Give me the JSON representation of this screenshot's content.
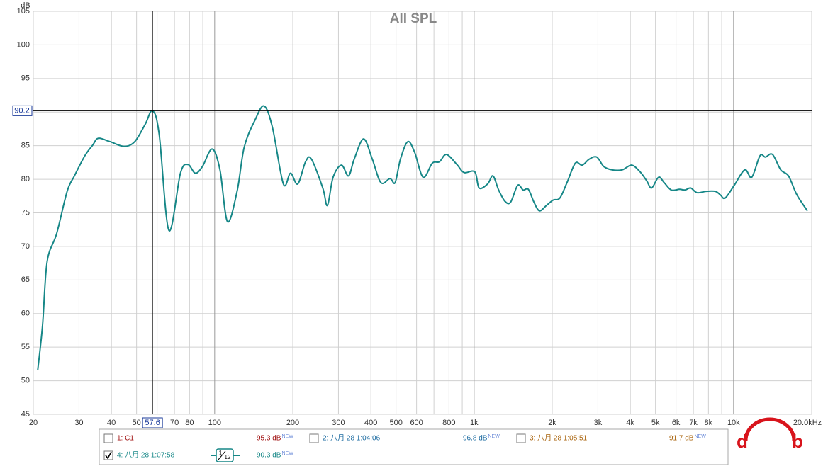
{
  "chart_data": {
    "type": "line",
    "title": "All SPL",
    "y_label": "dB",
    "x_scale": "log",
    "xlim": [
      20,
      20000
    ],
    "ylim": [
      45,
      105
    ],
    "yticks": [
      45,
      50,
      55,
      60,
      65,
      70,
      75,
      80,
      85,
      90,
      95,
      100,
      105
    ],
    "xticks": [
      20,
      30,
      40,
      50,
      70,
      80,
      100,
      200,
      300,
      400,
      500,
      600,
      800,
      {
        "value": 1000,
        "label": "1k"
      },
      {
        "value": 2000,
        "label": "2k"
      },
      {
        "value": 3000,
        "label": "3k"
      },
      {
        "value": 4000,
        "label": "4k"
      },
      {
        "value": 5000,
        "label": "5k"
      },
      {
        "value": 6000,
        "label": "6k"
      },
      {
        "value": 7000,
        "label": "7k"
      },
      {
        "value": 8000,
        "label": "8k"
      },
      {
        "value": 10000,
        "label": "10k"
      },
      {
        "value": 20000,
        "label": "20.0kHz"
      }
    ],
    "x_minor_ticks": [
      60,
      90,
      700,
      900,
      9000
    ],
    "grid": true,
    "cursor": {
      "x": 57.6,
      "y": 90.2
    },
    "series": [
      {
        "name": "4: 八月 28 1:07:58",
        "color": "#168787",
        "x": [
          20.8,
          21.7,
          22.6,
          24.6,
          27,
          28.8,
          31.6,
          33.9,
          35.6,
          39.5,
          44.7,
          49.2,
          54,
          57.6,
          61.1,
          66.6,
          73.8,
          78.9,
          84.2,
          89.7,
          97.8,
          104.8,
          112,
          122,
          130,
          143,
          155,
          167,
          184,
          196,
          209,
          224,
          236,
          261,
          272,
          286,
          308,
          328,
          345,
          375,
          405,
          437,
          474,
          496,
          520,
          555,
          590,
          636,
          690,
          735,
          782,
          858,
          914,
          1006,
          1045,
          1127,
          1182,
          1243,
          1316,
          1383,
          1472,
          1545,
          1618,
          1700,
          1785,
          1900,
          2017,
          2140,
          2280,
          2455,
          2610,
          2780,
          2970,
          3160,
          3400,
          3720,
          4040,
          4340,
          4620,
          4830,
          5140,
          5400,
          5750,
          6190,
          6500,
          6830,
          7230,
          7840,
          8500,
          8880,
          9280,
          10060,
          11040,
          11750,
          12640,
          13270,
          14120,
          15200,
          16280,
          17530,
          19250
        ],
        "values": [
          51.6,
          58.2,
          67.7,
          71.9,
          78.2,
          80.5,
          83.5,
          85.1,
          86.1,
          85.6,
          84.9,
          85.6,
          88.2,
          90.2,
          86.7,
          72.4,
          80.9,
          82.2,
          80.9,
          81.9,
          84.5,
          81.4,
          73.7,
          78.2,
          84.8,
          88.8,
          90.9,
          87.7,
          79.3,
          80.9,
          79.3,
          82.6,
          83.0,
          78.7,
          76.1,
          80.3,
          82.1,
          80.5,
          83.0,
          86.0,
          83.0,
          79.5,
          80.1,
          79.5,
          83.0,
          85.6,
          84.0,
          80.3,
          82.4,
          82.6,
          83.7,
          82.2,
          81.0,
          81.1,
          78.7,
          79.3,
          80.5,
          78.4,
          76.7,
          76.6,
          79.1,
          78.4,
          78.5,
          76.6,
          75.3,
          76.1,
          76.9,
          77.2,
          79.5,
          82.4,
          82.1,
          83.0,
          83.3,
          81.9,
          81.4,
          81.4,
          82.1,
          81.2,
          79.8,
          78.7,
          80.3,
          79.5,
          78.4,
          78.5,
          78.4,
          78.7,
          78.0,
          78.2,
          78.2,
          77.7,
          77.2,
          79.1,
          81.4,
          80.3,
          83.5,
          83.3,
          83.7,
          81.4,
          80.5,
          77.7,
          75.3
        ]
      }
    ]
  },
  "panel": {
    "traces": [
      {
        "label": "1: C1",
        "level": "95.3 dB",
        "badge": "NEW",
        "color": "#a01010",
        "checked": false
      },
      {
        "label": "2: 八月 28 1:04:06",
        "level": "96.8 dB",
        "badge": "NEW",
        "color": "#1a6aa0",
        "checked": false
      },
      {
        "label": "3: 八月 28 1:05:51",
        "level": "91.7 dB",
        "badge": "NEW",
        "color": "#a8620a",
        "checked": false
      }
    ],
    "active": {
      "level": "90.3 dB",
      "badge": "NEW",
      "checked": true,
      "smoothing_num": "1",
      "smoothing_den": "12"
    }
  },
  "logo": {
    "left": "d",
    "right": "b"
  }
}
